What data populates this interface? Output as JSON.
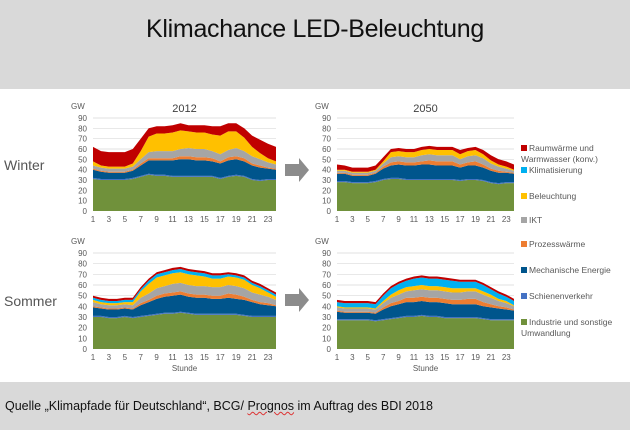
{
  "header": {
    "title": "Klimachance LED-Beleuchtung"
  },
  "footer": {
    "source_prefix": "Quelle „Klimapfade für Deutschland“, BCG/ ",
    "source_squiggle": "Prognos",
    "source_suffix": " im Auftrag des BDI 2018"
  },
  "rows": {
    "winter": "Winter",
    "summer": "Sommer"
  },
  "arrow_icon": "right-arrow-icon",
  "legend": [
    {
      "label": "Raumwärme und Warmwasser (konv.)",
      "color": "#c00000"
    },
    {
      "label": "Klimatisierung",
      "color": "#00b0f0"
    },
    {
      "label": "Beleuchtung",
      "color": "#ffc000"
    },
    {
      "label": "IKT",
      "color": "#a5a5a5"
    },
    {
      "label": "Prozesswärme",
      "color": "#ed7d31"
    },
    {
      "label": "Mechanische Energie",
      "color": "#00558c"
    },
    {
      "label": "Schienenverkehr",
      "color": "#4472c4"
    },
    {
      "label": "Industrie und sonstige Umwandlung",
      "color": "#70913b"
    }
  ],
  "chart_data": [
    {
      "type": "area",
      "stacked": true,
      "title": "2012",
      "season": "Winter",
      "ylabel": "GW",
      "xlabel": "",
      "ylim": [
        0,
        90
      ],
      "yticks": [
        0,
        10,
        20,
        30,
        40,
        50,
        60,
        70,
        80,
        90
      ],
      "xticks": [
        1,
        3,
        5,
        7,
        9,
        11,
        13,
        15,
        17,
        19,
        21,
        23
      ],
      "x": [
        1,
        2,
        3,
        4,
        5,
        6,
        7,
        8,
        9,
        10,
        11,
        12,
        13,
        14,
        15,
        16,
        17,
        18,
        19,
        20,
        21,
        22,
        23,
        24
      ],
      "grid": true,
      "series": [
        {
          "name": "Industrie und sonstige Umwandlung",
          "values": [
            31,
            30,
            30,
            30,
            30,
            31,
            33,
            35,
            34,
            34,
            33,
            33,
            33,
            33,
            33,
            33,
            31,
            33,
            34,
            33,
            30,
            29,
            30,
            30
          ]
        },
        {
          "name": "Schienenverkehr",
          "values": [
            1,
            1,
            1,
            1,
            1,
            1,
            1,
            1,
            1,
            1,
            1,
            1,
            1,
            1,
            1,
            1,
            1,
            1,
            1,
            1,
            1,
            1,
            1,
            1
          ]
        },
        {
          "name": "Mechanische Energie",
          "values": [
            8,
            7,
            6,
            6,
            6,
            7,
            10,
            13,
            14,
            14,
            15,
            16,
            16,
            15,
            15,
            14,
            14,
            15,
            15,
            14,
            13,
            12,
            10,
            9
          ]
        },
        {
          "name": "Prozesswärme",
          "values": [
            1,
            1,
            1,
            1,
            1,
            1,
            2,
            2,
            2,
            2,
            2,
            3,
            3,
            3,
            3,
            3,
            2,
            3,
            3,
            3,
            2,
            2,
            1,
            1
          ]
        },
        {
          "name": "IKT",
          "values": [
            3,
            3,
            3,
            3,
            3,
            3,
            4,
            6,
            7,
            7,
            7,
            7,
            8,
            8,
            8,
            7,
            7,
            7,
            8,
            7,
            7,
            6,
            5,
            4
          ]
        },
        {
          "name": "Beleuchtung",
          "values": [
            4,
            2,
            2,
            2,
            2,
            3,
            8,
            15,
            17,
            17,
            18,
            18,
            16,
            16,
            16,
            16,
            18,
            18,
            16,
            13,
            9,
            6,
            4,
            3
          ]
        },
        {
          "name": "Klimatisierung",
          "values": [
            0,
            0,
            0,
            0,
            0,
            0,
            0,
            0,
            0,
            0,
            0,
            0,
            0,
            0,
            0,
            0,
            0,
            0,
            0,
            0,
            0,
            0,
            0,
            0
          ]
        },
        {
          "name": "Raumwärme und Warmwasser (konv.)",
          "values": [
            14,
            14,
            14,
            14,
            14,
            14,
            12,
            8,
            7,
            7,
            7,
            7,
            6,
            7,
            7,
            8,
            9,
            8,
            8,
            9,
            11,
            13,
            14,
            14
          ]
        }
      ]
    },
    {
      "type": "area",
      "stacked": true,
      "title": "2050",
      "season": "Winter",
      "ylabel": "GW",
      "xlabel": "",
      "ylim": [
        0,
        90
      ],
      "yticks": [
        0,
        10,
        20,
        30,
        40,
        50,
        60,
        70,
        80,
        90
      ],
      "xticks": [
        1,
        3,
        5,
        7,
        9,
        11,
        13,
        15,
        17,
        19,
        21,
        23
      ],
      "x": [
        1,
        2,
        3,
        4,
        5,
        6,
        7,
        8,
        9,
        10,
        11,
        12,
        13,
        14,
        15,
        16,
        17,
        18,
        19,
        20,
        21,
        22,
        23,
        24
      ],
      "grid": true,
      "series": [
        {
          "name": "Industrie und sonstige Umwandlung",
          "values": [
            28,
            28,
            27,
            27,
            27,
            28,
            30,
            31,
            31,
            30,
            30,
            30,
            30,
            30,
            30,
            30,
            29,
            30,
            30,
            29,
            27,
            26,
            27,
            27
          ]
        },
        {
          "name": "Schienenverkehr",
          "values": [
            1,
            1,
            1,
            1,
            1,
            1,
            1,
            1,
            1,
            1,
            1,
            1,
            1,
            1,
            1,
            1,
            1,
            1,
            1,
            1,
            1,
            1,
            1,
            1
          ]
        },
        {
          "name": "Mechanische Energie",
          "values": [
            7,
            7,
            6,
            6,
            6,
            7,
            10,
            12,
            13,
            13,
            13,
            14,
            14,
            13,
            13,
            13,
            12,
            13,
            13,
            12,
            11,
            10,
            9,
            8
          ]
        },
        {
          "name": "Prozesswärme",
          "values": [
            1,
            1,
            1,
            1,
            1,
            1,
            2,
            3,
            3,
            3,
            3,
            3,
            4,
            4,
            4,
            4,
            3,
            3,
            4,
            3,
            2,
            2,
            1,
            1
          ]
        },
        {
          "name": "IKT",
          "values": [
            2,
            2,
            2,
            2,
            2,
            2,
            3,
            5,
            5,
            5,
            5,
            6,
            6,
            6,
            6,
            6,
            5,
            6,
            6,
            6,
            5,
            4,
            3,
            2
          ]
        },
        {
          "name": "Beleuchtung",
          "values": [
            1,
            1,
            1,
            1,
            1,
            1,
            2,
            5,
            5,
            5,
            5,
            5,
            5,
            5,
            5,
            5,
            5,
            5,
            5,
            4,
            3,
            2,
            2,
            1
          ]
        },
        {
          "name": "Klimatisierung",
          "values": [
            0,
            0,
            0,
            0,
            0,
            0,
            0,
            0,
            0,
            0,
            0,
            0,
            0,
            0,
            0,
            0,
            0,
            0,
            0,
            0,
            0,
            0,
            0,
            0
          ]
        },
        {
          "name": "Raumwärme und Warmwasser (konv.)",
          "values": [
            5,
            4,
            4,
            4,
            4,
            4,
            4,
            3,
            3,
            3,
            3,
            3,
            3,
            3,
            3,
            3,
            4,
            3,
            3,
            4,
            5,
            5,
            5,
            5
          ]
        }
      ]
    },
    {
      "type": "area",
      "stacked": true,
      "title": "",
      "season": "Sommer",
      "ylabel": "GW",
      "xlabel": "Stunde",
      "ylim": [
        0,
        90
      ],
      "yticks": [
        0,
        10,
        20,
        30,
        40,
        50,
        60,
        70,
        80,
        90
      ],
      "xticks": [
        1,
        3,
        5,
        7,
        9,
        11,
        13,
        15,
        17,
        19,
        21,
        23
      ],
      "x": [
        1,
        2,
        3,
        4,
        5,
        6,
        7,
        8,
        9,
        10,
        11,
        12,
        13,
        14,
        15,
        16,
        17,
        18,
        19,
        20,
        21,
        22,
        23,
        24
      ],
      "grid": true,
      "series": [
        {
          "name": "Industrie und sonstige Umwandlung",
          "values": [
            30,
            30,
            29,
            29,
            30,
            29,
            30,
            31,
            32,
            33,
            33,
            34,
            33,
            32,
            32,
            32,
            32,
            32,
            32,
            31,
            30,
            30,
            30,
            30
          ]
        },
        {
          "name": "Schienenverkehr",
          "values": [
            1,
            1,
            1,
            1,
            1,
            1,
            1,
            1,
            1,
            1,
            1,
            1,
            1,
            1,
            1,
            1,
            1,
            1,
            1,
            1,
            1,
            1,
            1,
            1
          ]
        },
        {
          "name": "Mechanische Energie",
          "values": [
            8,
            7,
            7,
            7,
            7,
            7,
            10,
            12,
            14,
            15,
            16,
            16,
            15,
            15,
            15,
            14,
            14,
            15,
            14,
            14,
            13,
            11,
            10,
            9
          ]
        },
        {
          "name": "Prozesswärme",
          "values": [
            1,
            1,
            1,
            1,
            1,
            1,
            2,
            2,
            3,
            3,
            3,
            3,
            3,
            3,
            3,
            3,
            3,
            4,
            4,
            3,
            2,
            2,
            2,
            1
          ]
        },
        {
          "name": "IKT",
          "values": [
            4,
            3,
            3,
            3,
            3,
            3,
            5,
            6,
            7,
            7,
            8,
            8,
            8,
            8,
            8,
            8,
            8,
            8,
            8,
            8,
            7,
            7,
            6,
            5
          ]
        },
        {
          "name": "Beleuchtung",
          "values": [
            2,
            2,
            2,
            2,
            2,
            3,
            6,
            9,
            10,
            10,
            10,
            10,
            10,
            10,
            9,
            8,
            8,
            8,
            8,
            8,
            7,
            6,
            4,
            3
          ]
        },
        {
          "name": "Klimatisierung",
          "values": [
            2,
            2,
            2,
            2,
            2,
            2,
            2,
            3,
            3,
            3,
            3,
            3,
            3,
            3,
            3,
            3,
            3,
            2,
            2,
            2,
            2,
            2,
            2,
            2
          ]
        },
        {
          "name": "Raumwärme und Warmwasser (konv.)",
          "values": [
            2,
            2,
            2,
            2,
            2,
            2,
            2,
            2,
            2,
            2,
            2,
            2,
            2,
            2,
            2,
            2,
            2,
            2,
            2,
            2,
            2,
            2,
            2,
            2
          ]
        }
      ]
    },
    {
      "type": "area",
      "stacked": true,
      "title": "",
      "season": "Sommer",
      "ylabel": "GW",
      "xlabel": "Stunde",
      "ylim": [
        0,
        90
      ],
      "yticks": [
        0,
        10,
        20,
        30,
        40,
        50,
        60,
        70,
        80,
        90
      ],
      "xticks": [
        1,
        3,
        5,
        7,
        9,
        11,
        13,
        15,
        17,
        19,
        21,
        23
      ],
      "x": [
        1,
        2,
        3,
        4,
        5,
        6,
        7,
        8,
        9,
        10,
        11,
        12,
        13,
        14,
        15,
        16,
        17,
        18,
        19,
        20,
        21,
        22,
        23,
        24
      ],
      "grid": true,
      "series": [
        {
          "name": "Industrie und sonstige Umwandlung",
          "values": [
            27,
            27,
            27,
            27,
            27,
            26,
            27,
            28,
            29,
            30,
            30,
            31,
            30,
            30,
            29,
            29,
            29,
            29,
            29,
            28,
            27,
            27,
            27,
            27
          ]
        },
        {
          "name": "Schienenverkehr",
          "values": [
            1,
            1,
            1,
            1,
            1,
            1,
            1,
            1,
            1,
            1,
            1,
            1,
            1,
            1,
            1,
            1,
            1,
            1,
            1,
            1,
            1,
            1,
            1,
            1
          ]
        },
        {
          "name": "Mechanische Energie",
          "values": [
            7,
            6,
            6,
            6,
            6,
            6,
            9,
            11,
            12,
            13,
            13,
            13,
            13,
            13,
            13,
            12,
            12,
            12,
            12,
            11,
            11,
            10,
            9,
            8
          ]
        },
        {
          "name": "Prozesswärme",
          "values": [
            1,
            1,
            1,
            1,
            1,
            1,
            2,
            3,
            3,
            4,
            4,
            4,
            4,
            4,
            4,
            4,
            4,
            5,
            5,
            4,
            3,
            2,
            2,
            1
          ]
        },
        {
          "name": "IKT",
          "values": [
            3,
            3,
            3,
            3,
            3,
            3,
            4,
            5,
            6,
            6,
            7,
            7,
            7,
            7,
            7,
            7,
            7,
            7,
            7,
            7,
            6,
            5,
            4,
            3
          ]
        },
        {
          "name": "Beleuchtung",
          "values": [
            1,
            1,
            1,
            1,
            1,
            1,
            2,
            3,
            4,
            4,
            4,
            4,
            4,
            4,
            4,
            4,
            4,
            3,
            3,
            3,
            3,
            2,
            2,
            1
          ]
        },
        {
          "name": "Klimatisierung",
          "values": [
            4,
            4,
            4,
            4,
            4,
            4,
            5,
            6,
            6,
            6,
            7,
            7,
            7,
            7,
            7,
            7,
            6,
            6,
            6,
            6,
            5,
            5,
            4,
            4
          ]
        },
        {
          "name": "Raumwärme und Warmwasser (konv.)",
          "values": [
            2,
            2,
            2,
            2,
            2,
            2,
            2,
            2,
            2,
            2,
            2,
            2,
            2,
            2,
            2,
            2,
            2,
            2,
            2,
            2,
            2,
            2,
            2,
            2
          ]
        }
      ]
    }
  ]
}
